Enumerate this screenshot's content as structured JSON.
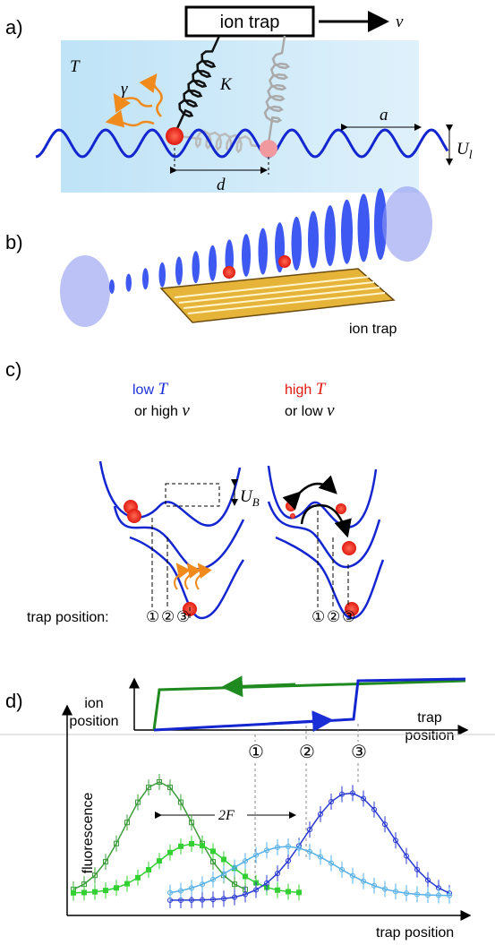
{
  "a": {
    "label": "a)",
    "trap": "ion trap",
    "v": "v",
    "T": "T",
    "gamma": "γ",
    "K": "K",
    "a": "a",
    "U": "U",
    "U_sub": "l",
    "d": "d"
  },
  "b": {
    "label": "b)",
    "trap": "ion trap"
  },
  "c": {
    "label": "c)",
    "low": "low",
    "low_T": "T",
    "or_high": "or high",
    "or_high_v": "v",
    "high": "high",
    "high_T": "T",
    "or_low": "or low",
    "or_low_v": "v",
    "U": "U",
    "U_sub": "B",
    "trap_position": "trap position:",
    "left_marks": [
      "①",
      "②",
      "③"
    ],
    "right_marks": [
      "①",
      "②",
      "③"
    ]
  },
  "d": {
    "label": "d)",
    "ion_1": "ion",
    "ion_2": "position",
    "trap_1": "trap",
    "trap_2": "position",
    "marks": [
      "①",
      "②",
      "③"
    ],
    "fluorescence": "fluorescence",
    "two_f": "2F",
    "trap_position": "trap position"
  }
}
